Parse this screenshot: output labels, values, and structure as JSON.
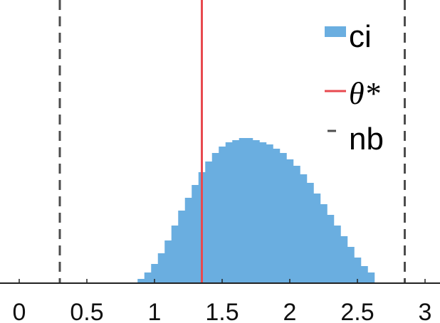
{
  "chart_data": {
    "type": "histogram",
    "title": "",
    "xlabel": "",
    "ylabel": "",
    "xlim": [
      -0.1,
      3.1
    ],
    "x_ticks": [
      0,
      0.5,
      1,
      1.5,
      2,
      2.5,
      3
    ],
    "x_tick_labels": [
      "0",
      "0.5",
      "1",
      "1.5",
      "2",
      "2.5",
      "3"
    ],
    "grid": false,
    "legend_position": "top-right",
    "series": [
      {
        "name": "ci",
        "kind": "histogram",
        "color": "#6aaee0",
        "bin_centers": [
          0.9,
          0.95,
          1.0,
          1.05,
          1.1,
          1.15,
          1.2,
          1.25,
          1.3,
          1.35,
          1.4,
          1.45,
          1.5,
          1.55,
          1.6,
          1.65,
          1.7,
          1.75,
          1.8,
          1.85,
          1.9,
          1.95,
          2.0,
          2.05,
          2.1,
          2.15,
          2.2,
          2.25,
          2.3,
          2.35,
          2.4,
          2.45,
          2.5,
          2.55,
          2.6
        ],
        "relative_height": [
          0.02,
          0.05,
          0.09,
          0.14,
          0.2,
          0.27,
          0.34,
          0.4,
          0.46,
          0.52,
          0.57,
          0.61,
          0.64,
          0.66,
          0.67,
          0.68,
          0.68,
          0.67,
          0.66,
          0.65,
          0.63,
          0.61,
          0.58,
          0.55,
          0.51,
          0.47,
          0.42,
          0.37,
          0.32,
          0.27,
          0.22,
          0.17,
          0.12,
          0.08,
          0.05
        ]
      },
      {
        "name": "θ*",
        "kind": "vline",
        "color": "#e8494f",
        "x": 1.35
      },
      {
        "name": "nb",
        "kind": "vline-dashed",
        "color": "#4d4d4d",
        "x": [
          0.3,
          2.85
        ]
      }
    ]
  },
  "legend": {
    "items": [
      {
        "label": "ci",
        "color": "#6aaee0"
      },
      {
        "label": "θ*",
        "color": "#e8494f"
      },
      {
        "label": "nb",
        "color": "#4d4d4d"
      }
    ]
  }
}
